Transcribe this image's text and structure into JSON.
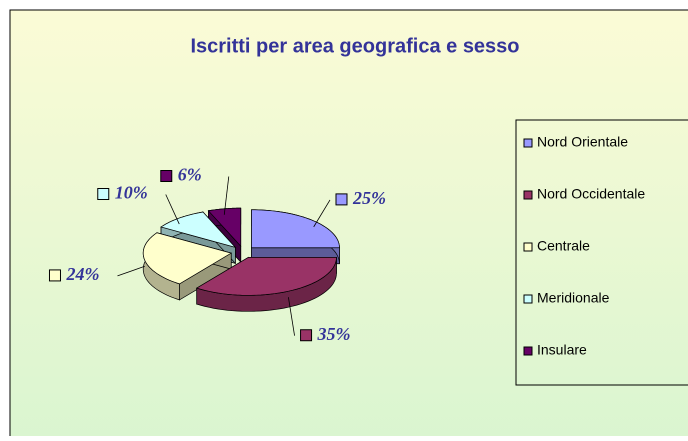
{
  "chart_data": {
    "type": "pie",
    "title": "Iscritti per area geografica e sesso",
    "categories": [
      "Nord Orientale",
      "Nord Occidentale",
      "Centrale",
      "Meridionale",
      "Insulare"
    ],
    "values": [
      25,
      35,
      24,
      10,
      6
    ],
    "value_labels": [
      "25%",
      "35%",
      "24%",
      "10%",
      "6%"
    ],
    "colors": [
      "#9999ff",
      "#993366",
      "#ffffcc",
      "#ccffff",
      "#660066"
    ],
    "legend": "right"
  }
}
